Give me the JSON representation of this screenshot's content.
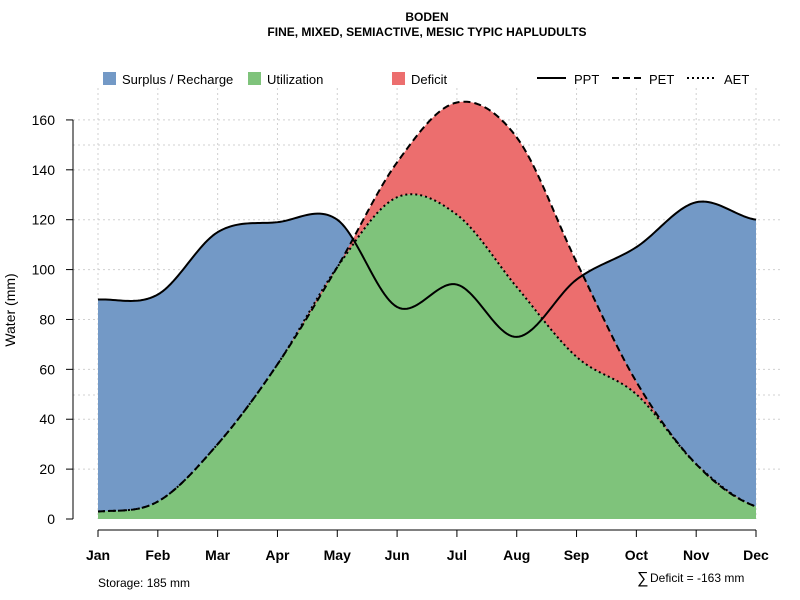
{
  "chart_data": {
    "type": "area",
    "title": "BODEN",
    "subtitle": "FINE, MIXED, SEMIACTIVE, MESIC TYPIC HAPLUDULTS",
    "xlabel": "",
    "ylabel": "Water (mm)",
    "ylim": [
      0,
      172
    ],
    "yticks": [
      0,
      20,
      40,
      60,
      80,
      100,
      120,
      140,
      160
    ],
    "categories": [
      "Jan",
      "Feb",
      "Mar",
      "Apr",
      "May",
      "Jun",
      "Jul",
      "Aug",
      "Sep",
      "Oct",
      "Nov",
      "Dec"
    ],
    "series": [
      {
        "name": "PPT",
        "line": "solid",
        "values": [
          88,
          90,
          115,
          119,
          120,
          85,
          94,
          73,
          96,
          109,
          127,
          120
        ]
      },
      {
        "name": "PET",
        "line": "dashed",
        "values": [
          3,
          7,
          30,
          62,
          101,
          143,
          167,
          153,
          103,
          55,
          22,
          5
        ]
      },
      {
        "name": "AET",
        "line": "dotted",
        "values": [
          3,
          7,
          30,
          62,
          101,
          129,
          122,
          93,
          65,
          50,
          22,
          5
        ]
      }
    ],
    "areas": [
      {
        "name": "Surplus / Recharge",
        "color": "#7399c6"
      },
      {
        "name": "Utilization",
        "color": "#7fc37b"
      },
      {
        "name": "Deficit",
        "color": "#ec6e6e"
      }
    ],
    "legend_position": "top"
  },
  "footer": {
    "storage": "Storage: 185 mm",
    "deficit_symbol": "∑",
    "deficit": "Deficit = -163 mm"
  }
}
